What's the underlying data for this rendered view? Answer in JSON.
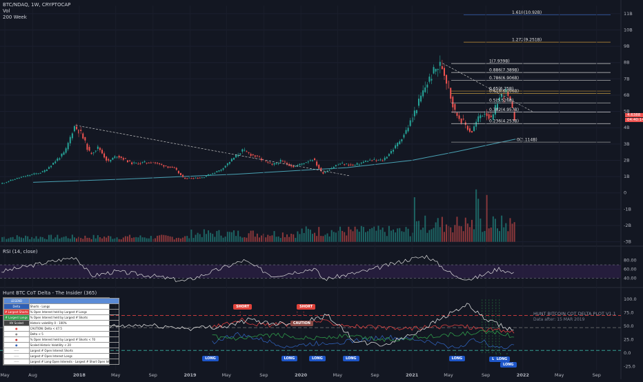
{
  "header": {
    "symbol_line": "BTC/NDAQ, 1W, CRYPTOCAP",
    "vol_label": "Vol",
    "ma_label": "200 Week"
  },
  "rsi_title": "RSI (14, close)",
  "cot_title": "Hunt BTC CoT Delta - The Insider (365)",
  "cot_watermark": {
    "title": "HUNT BITCOIN COT DELTA PLOT V1.1",
    "subtitle": "Data after: 15 MAR 2019"
  },
  "price_tags": {
    "last": "4.6388",
    "countdown": "04:40:14"
  },
  "colors": {
    "bg": "#131722",
    "up": "#26a69a",
    "down": "#ef5350",
    "ma": "#4aa3b5",
    "rsi_line": "#e0e0e0",
    "rsi_band": "#2a1f44",
    "legend_head": "#5b8bd6"
  },
  "legend": {
    "header": "LEGEND",
    "rows": [
      {
        "key": "Delta",
        "desc": "Shorts - Longs",
        "color": "#2f5fb5"
      },
      {
        "key": "# Largest Shorts",
        "desc": "% Open Interest held by Largest # Longs",
        "color": "#e04040"
      },
      {
        "key": "# Largest Longs",
        "desc": "% Open Interest held by Largest # Shorts",
        "color": "#2f9a4a"
      },
      {
        "key": "HV Scaled",
        "desc": "Historic volatility 0 - 100%",
        "color": "#444444"
      },
      {
        "key": "●",
        "desc": "CAUTION: Delta < 47.5",
        "color": "#e04040"
      },
      {
        "key": "●",
        "desc": "Delta < 5",
        "color": "#888888"
      },
      {
        "key": "●",
        "desc": "% Open Interest held by Largest # Shorts < 70",
        "color": "#c03030"
      },
      {
        "key": "●",
        "desc": "Scaled Historic Volatility < 20",
        "color": "#2f5fb5"
      },
      {
        "key": "-----",
        "desc": "Largest # Open Interest Shorts",
        "color": "#ffffff"
      },
      {
        "key": "-----",
        "desc": "Largest # Open Interest Longs",
        "color": "#ffffff"
      },
      {
        "key": "-----",
        "desc": "Largest # Long Open Interests - Largest # Short Open Interests",
        "color": "#ffffff"
      }
    ]
  },
  "signals": [
    {
      "label": "SHORT",
      "kind": "short",
      "date": "2019-06-15",
      "value": 86
    },
    {
      "label": "CAUTION",
      "kind": "caution",
      "date": "2019-12-20",
      "value": 55
    },
    {
      "label": "SHORT",
      "kind": "short",
      "date": "2020-01-10",
      "value": 86
    },
    {
      "label": "LONG",
      "kind": "long",
      "date": "2019-03-05",
      "value": -10
    },
    {
      "label": "LONG",
      "kind": "long",
      "date": "2019-11-20",
      "value": -10
    },
    {
      "label": "LONG",
      "kind": "long",
      "date": "2020-02-20",
      "value": -10
    },
    {
      "label": "LONG",
      "kind": "long",
      "date": "2020-06-10",
      "value": -10
    },
    {
      "label": "LONG",
      "kind": "long",
      "date": "2021-05-25",
      "value": -10
    },
    {
      "label": "LONG",
      "kind": "long",
      "date": "2021-10-05",
      "value": -12
    },
    {
      "label": "LONG",
      "kind": "long",
      "date": "2021-10-20",
      "value": -12
    },
    {
      "label": "LONG",
      "kind": "long",
      "date": "2021-11-10",
      "value": -22
    }
  ],
  "chart_data": [
    {
      "type": "line",
      "subtype": "candlestick",
      "x_type": "date",
      "xlim": [
        "2017-04-15",
        "2022-11-20"
      ],
      "x_ticks": [
        {
          "date": "2017-05-01",
          "label": "May"
        },
        {
          "date": "2017-08-01",
          "label": "Aug"
        },
        {
          "date": "2018-01-01",
          "label": "2018"
        },
        {
          "date": "2018-05-01",
          "label": "May"
        },
        {
          "date": "2018-09-01",
          "label": "Sep"
        },
        {
          "date": "2019-01-01",
          "label": "2019"
        },
        {
          "date": "2019-05-01",
          "label": "May"
        },
        {
          "date": "2019-09-01",
          "label": "Sep"
        },
        {
          "date": "2020-01-01",
          "label": "2020"
        },
        {
          "date": "2020-05-01",
          "label": "May"
        },
        {
          "date": "2020-09-01",
          "label": "Sep"
        },
        {
          "date": "2021-01-01",
          "label": "2021"
        },
        {
          "date": "2021-05-01",
          "label": "May"
        },
        {
          "date": "2021-09-01",
          "label": "Sep"
        },
        {
          "date": "2022-01-01",
          "label": "2022"
        },
        {
          "date": "2022-05-01",
          "label": "May"
        },
        {
          "date": "2022-09-01",
          "label": "Sep"
        }
      ],
      "y_ticks": [
        "11B",
        "10B",
        "9B",
        "8B",
        "7B",
        "6B",
        "5B",
        "4B",
        "3B",
        "2B",
        "1B",
        "0",
        "-1B",
        "-2B",
        "-3B"
      ],
      "y_tick_values": [
        11,
        10,
        9,
        8,
        7,
        6,
        5,
        4,
        3,
        2,
        1,
        0,
        -1,
        -2,
        -3
      ],
      "price_pivots": [
        {
          "date": "2017-04-20",
          "value": 0.55
        },
        {
          "date": "2017-06-15",
          "value": 0.9
        },
        {
          "date": "2017-09-10",
          "value": 1.3
        },
        {
          "date": "2017-11-20",
          "value": 2.5
        },
        {
          "date": "2017-12-20",
          "value": 4.1
        },
        {
          "date": "2018-01-10",
          "value": 3.7
        },
        {
          "date": "2018-02-10",
          "value": 2.4
        },
        {
          "date": "2018-03-10",
          "value": 2.8
        },
        {
          "date": "2018-04-10",
          "value": 1.9
        },
        {
          "date": "2018-05-10",
          "value": 2.3
        },
        {
          "date": "2018-07-01",
          "value": 1.8
        },
        {
          "date": "2018-09-01",
          "value": 1.9
        },
        {
          "date": "2018-11-15",
          "value": 1.5
        },
        {
          "date": "2018-12-15",
          "value": 0.9
        },
        {
          "date": "2019-02-15",
          "value": 0.95
        },
        {
          "date": "2019-04-15",
          "value": 1.4
        },
        {
          "date": "2019-06-26",
          "value": 2.6
        },
        {
          "date": "2019-08-15",
          "value": 2.2
        },
        {
          "date": "2019-10-01",
          "value": 1.7
        },
        {
          "date": "2019-11-01",
          "value": 1.95
        },
        {
          "date": "2019-12-15",
          "value": 1.6
        },
        {
          "date": "2020-02-15",
          "value": 2.1
        },
        {
          "date": "2020-03-15",
          "value": 1.2
        },
        {
          "date": "2020-05-10",
          "value": 1.8
        },
        {
          "date": "2020-07-01",
          "value": 1.7
        },
        {
          "date": "2020-08-15",
          "value": 2.0
        },
        {
          "date": "2020-10-01",
          "value": 2.0
        },
        {
          "date": "2020-11-15",
          "value": 2.9
        },
        {
          "date": "2020-12-20",
          "value": 3.9
        },
        {
          "date": "2021-01-15",
          "value": 5.0
        },
        {
          "date": "2021-02-20",
          "value": 6.6
        },
        {
          "date": "2021-03-20",
          "value": 7.5
        },
        {
          "date": "2021-04-12",
          "value": 7.9
        },
        {
          "date": "2021-05-05",
          "value": 6.6
        },
        {
          "date": "2021-05-25",
          "value": 5.0
        },
        {
          "date": "2021-06-25",
          "value": 4.3
        },
        {
          "date": "2021-07-20",
          "value": 3.7
        },
        {
          "date": "2021-08-15",
          "value": 4.7
        },
        {
          "date": "2021-09-05",
          "value": 5.0
        },
        {
          "date": "2021-09-25",
          "value": 4.4
        },
        {
          "date": "2021-10-15",
          "value": 5.7
        },
        {
          "date": "2021-11-10",
          "value": 6.2
        },
        {
          "date": "2021-11-25",
          "value": 5.5
        },
        {
          "date": "2021-12-08",
          "value": 4.6
        }
      ],
      "ma_200w": [
        {
          "date": "2017-08-01",
          "value": 0.65
        },
        {
          "date": "2018-06-01",
          "value": 0.85
        },
        {
          "date": "2019-06-01",
          "value": 1.15
        },
        {
          "date": "2020-06-01",
          "value": 1.55
        },
        {
          "date": "2021-01-01",
          "value": 2.0
        },
        {
          "date": "2021-06-01",
          "value": 2.55
        },
        {
          "date": "2021-12-08",
          "value": 3.3
        }
      ],
      "trendlines": [
        {
          "from": {
            "date": "2017-12-20",
            "value": 4.15
          },
          "to": {
            "date": "2020-06-10",
            "value": 1.05
          }
        },
        {
          "from": {
            "date": "2021-04-12",
            "value": 7.95
          },
          "to": {
            "date": "2022-02-01",
            "value": 5.0
          }
        }
      ],
      "fib_levels": [
        {
          "label": "0(3.114B)",
          "value": 3.114,
          "color": "#9a9a9a"
        },
        {
          "label": "0.236(4.253B)",
          "value": 4.253,
          "color": "#d0d0d0"
        },
        {
          "label": "0.382(4.957B)",
          "value": 4.957,
          "color": "#d0d0d0"
        },
        {
          "label": "0.5(5.526B)",
          "value": 5.526,
          "color": "#d0d0d0"
        },
        {
          "label": "0.618(6.096B)",
          "value": 6.096,
          "color": "#e8b64a"
        },
        {
          "label": "0.65(6.25B)",
          "value": 6.25,
          "color": "#c9963a"
        },
        {
          "label": "0.786(6.906B)",
          "value": 6.906,
          "color": "#d0d0d0"
        },
        {
          "label": "0.886(7.389B)",
          "value": 7.389,
          "color": "#d0d0d0"
        },
        {
          "label": "1(7.939B)",
          "value": 7.939,
          "color": "#d0d0d0"
        },
        {
          "label": "1.272(9.251B)",
          "value": 9.251,
          "color": "#c9963a"
        },
        {
          "label": "1.618(10.92B)",
          "value": 10.92,
          "color": "#3f6fd0"
        }
      ],
      "ylim": [
        -3.1,
        11.5
      ]
    },
    {
      "type": "line",
      "title": "RSI (14, close)",
      "x_type": "date",
      "xlim": [
        "2017-04-15",
        "2022-11-20"
      ],
      "y_ticks": [
        "80.00",
        "60.00",
        "40.00"
      ],
      "y_tick_values": [
        80,
        60,
        40
      ],
      "ylim": [
        25,
        95
      ],
      "bands": [
        {
          "from": 40,
          "to": 70
        }
      ],
      "values": [
        {
          "date": "2017-04-20",
          "value": 55
        },
        {
          "date": "2017-07-01",
          "value": 65
        },
        {
          "date": "2017-12-20",
          "value": 88
        },
        {
          "date": "2018-02-10",
          "value": 45
        },
        {
          "date": "2018-05-01",
          "value": 55
        },
        {
          "date": "2018-09-01",
          "value": 45
        },
        {
          "date": "2018-12-15",
          "value": 33
        },
        {
          "date": "2019-04-15",
          "value": 62
        },
        {
          "date": "2019-06-26",
          "value": 80
        },
        {
          "date": "2019-10-01",
          "value": 45
        },
        {
          "date": "2020-02-15",
          "value": 62
        },
        {
          "date": "2020-03-15",
          "value": 37
        },
        {
          "date": "2020-08-15",
          "value": 58
        },
        {
          "date": "2020-12-20",
          "value": 82
        },
        {
          "date": "2021-02-20",
          "value": 90
        },
        {
          "date": "2021-05-25",
          "value": 43
        },
        {
          "date": "2021-07-20",
          "value": 38
        },
        {
          "date": "2021-10-15",
          "value": 62
        },
        {
          "date": "2021-12-08",
          "value": 48
        }
      ]
    },
    {
      "type": "line",
      "title": "Hunt BTC CoT Delta - The Insider (365)",
      "x_type": "date",
      "xlim": [
        "2017-04-15",
        "2022-11-20"
      ],
      "y_ticks": [
        "100.0",
        "75.0",
        "50.0",
        "25.0",
        "0.0",
        "-25.0"
      ],
      "y_tick_values": [
        100,
        75,
        50,
        25,
        0,
        -25
      ],
      "ylim": [
        -32,
        108
      ],
      "hlines": [
        {
          "value": 70,
          "color": "#e04040"
        },
        {
          "value": 47.5,
          "color": "#7a7a7a"
        },
        {
          "value": 5,
          "color": "#3bb5a5"
        }
      ],
      "series": [
        {
          "key": "delta",
          "color": "#2f5fb5",
          "values": [
            {
              "date": "2019-03-15",
              "value": 20
            },
            {
              "date": "2019-06-01",
              "value": 35
            },
            {
              "date": "2019-08-01",
              "value": 28
            },
            {
              "date": "2019-11-20",
              "value": 12
            },
            {
              "date": "2020-02-20",
              "value": 18
            },
            {
              "date": "2020-06-10",
              "value": 22
            },
            {
              "date": "2020-10-01",
              "value": 30
            },
            {
              "date": "2021-02-01",
              "value": 24
            },
            {
              "date": "2021-05-25",
              "value": 10
            },
            {
              "date": "2021-08-01",
              "value": 26
            },
            {
              "date": "2021-10-20",
              "value": 8
            },
            {
              "date": "2021-12-08",
              "value": 18
            }
          ]
        },
        {
          "key": "largest_shorts",
          "color": "#e04040",
          "values": [
            {
              "date": "2019-03-15",
              "value": 48
            },
            {
              "date": "2019-06-15",
              "value": 62
            },
            {
              "date": "2019-09-01",
              "value": 52
            },
            {
              "date": "2019-12-20",
              "value": 55
            },
            {
              "date": "2020-03-01",
              "value": 60
            },
            {
              "date": "2020-07-01",
              "value": 50
            },
            {
              "date": "2020-11-01",
              "value": 45
            },
            {
              "date": "2021-03-01",
              "value": 48
            },
            {
              "date": "2021-06-01",
              "value": 52
            },
            {
              "date": "2021-09-01",
              "value": 44
            },
            {
              "date": "2021-12-08",
              "value": 40
            }
          ]
        },
        {
          "key": "largest_longs",
          "color": "#2f9a4a",
          "values": [
            {
              "date": "2019-03-15",
              "value": 30
            },
            {
              "date": "2019-06-15",
              "value": 25
            },
            {
              "date": "2019-10-01",
              "value": 34
            },
            {
              "date": "2020-02-01",
              "value": 28
            },
            {
              "date": "2020-06-01",
              "value": 32
            },
            {
              "date": "2020-10-01",
              "value": 25
            },
            {
              "date": "2021-02-01",
              "value": 30
            },
            {
              "date": "2021-06-01",
              "value": 35
            },
            {
              "date": "2021-10-01",
              "value": 40
            },
            {
              "date": "2021-12-08",
              "value": 30
            }
          ]
        },
        {
          "key": "hv_scaled",
          "color": "#dcdcdc",
          "values": [
            {
              "date": "2018-03-01",
              "value": 48
            },
            {
              "date": "2018-08-01",
              "value": 52
            },
            {
              "date": "2019-01-01",
              "value": 46
            },
            {
              "date": "2019-05-01",
              "value": 50
            },
            {
              "date": "2019-07-15",
              "value": 62
            },
            {
              "date": "2019-10-01",
              "value": 55
            },
            {
              "date": "2020-01-01",
              "value": 58
            },
            {
              "date": "2020-04-01",
              "value": 70
            },
            {
              "date": "2020-07-01",
              "value": 20
            },
            {
              "date": "2020-10-01",
              "value": 15
            },
            {
              "date": "2021-01-01",
              "value": 35
            },
            {
              "date": "2021-05-01",
              "value": 72
            },
            {
              "date": "2021-07-01",
              "value": 90
            },
            {
              "date": "2021-09-01",
              "value": 62
            },
            {
              "date": "2021-12-08",
              "value": 40
            }
          ]
        }
      ]
    }
  ]
}
